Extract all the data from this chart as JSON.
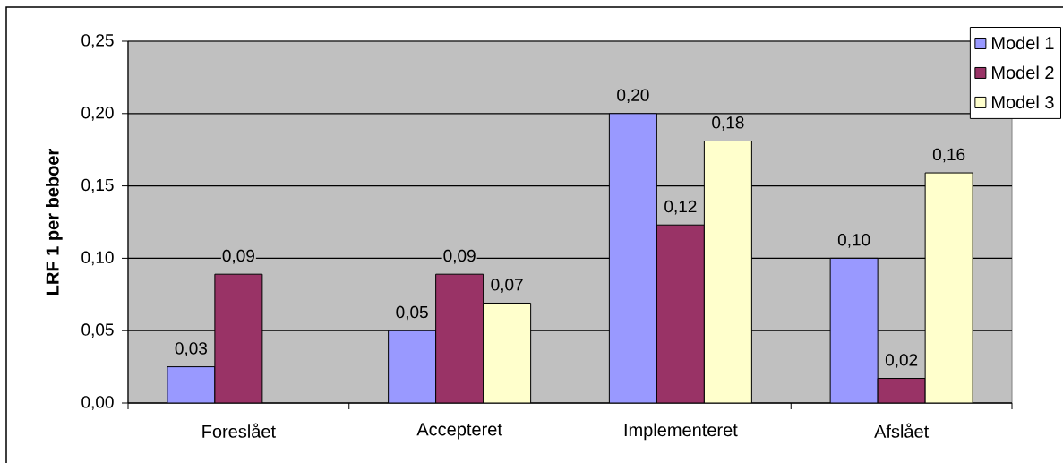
{
  "chart_data": {
    "type": "bar",
    "ylabel": "LRF 1 per beboer",
    "categories": [
      "Foreslået",
      "Accepteret",
      "Implementeret",
      "Afslået"
    ],
    "series": [
      {
        "name": "Model 1",
        "color": "#9999ff",
        "values": [
          0.025,
          0.05,
          0.2,
          0.1
        ],
        "value_labels": [
          "0,03",
          "0,05",
          "0,20",
          "0,10"
        ]
      },
      {
        "name": "Model 2",
        "color": "#993366",
        "values": [
          0.089,
          0.089,
          0.123,
          0.017
        ],
        "value_labels": [
          "0,09",
          "0,09",
          "0,12",
          "0,02"
        ]
      },
      {
        "name": "Model 3",
        "color": "#ffffcc",
        "values": [
          null,
          0.069,
          0.181,
          0.159
        ],
        "value_labels": [
          null,
          "0,07",
          "0,18",
          "0,16"
        ]
      }
    ],
    "ylim": [
      0,
      0.25
    ],
    "yticks": [
      {
        "value": 0,
        "label": "0,00"
      },
      {
        "value": 0.05,
        "label": "0,05"
      },
      {
        "value": 0.1,
        "label": "0,10"
      },
      {
        "value": 0.15,
        "label": "0,15"
      },
      {
        "value": 0.2,
        "label": "0,20"
      },
      {
        "value": 0.25,
        "label": "0,25"
      }
    ],
    "grid": "y",
    "legend": "top right"
  }
}
